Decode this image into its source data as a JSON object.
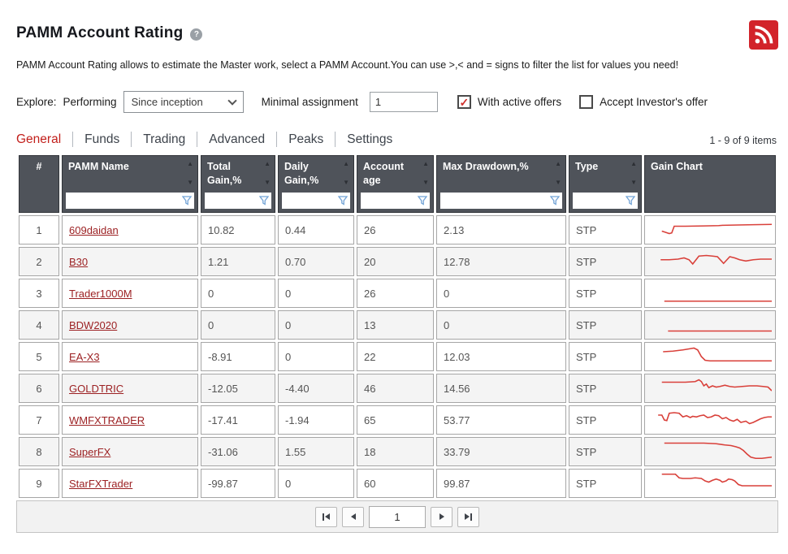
{
  "page": {
    "title": "PAMM Account Rating",
    "help_glyph": "?",
    "description": "PAMM Account Rating allows to estimate the Master work, select a PAMM Account.You can use >,< and = signs to filter the list for values you need!"
  },
  "filters": {
    "explore_label": "Explore:",
    "mode_label": "Performing",
    "period_value": "Since inception",
    "min_assignment_label": "Minimal assignment",
    "min_assignment_value": "1",
    "checkboxes": [
      {
        "label": "With active offers",
        "checked": true
      },
      {
        "label": "Accept Investor's offer",
        "checked": false
      }
    ]
  },
  "tabs": [
    {
      "label": "General",
      "active": true
    },
    {
      "label": "Funds",
      "active": false
    },
    {
      "label": "Trading",
      "active": false
    },
    {
      "label": "Advanced",
      "active": false
    },
    {
      "label": "Peaks",
      "active": false
    },
    {
      "label": "Settings",
      "active": false
    }
  ],
  "items_count": "1 - 9 of 9 items",
  "table": {
    "columns": [
      {
        "label": "#"
      },
      {
        "label": "PAMM Name"
      },
      {
        "label": "Total Gain,%"
      },
      {
        "label": "Daily Gain,%"
      },
      {
        "label": "Account age"
      },
      {
        "label": "Max Drawdown,%"
      },
      {
        "label": "Type"
      },
      {
        "label": "Gain Chart"
      }
    ],
    "rows": [
      {
        "num": "1",
        "name": "609daidan",
        "total": "10.82",
        "daily": "0.44",
        "age": "26",
        "drawdown": "2.13",
        "type": "STP"
      },
      {
        "num": "2",
        "name": "B30",
        "total": "1.21",
        "daily": "0.70",
        "age": "20",
        "drawdown": "12.78",
        "type": "STP"
      },
      {
        "num": "3",
        "name": "Trader1000M",
        "total": "0",
        "daily": "0",
        "age": "26",
        "drawdown": "0",
        "type": "STP"
      },
      {
        "num": "4",
        "name": "BDW2020",
        "total": "0",
        "daily": "0",
        "age": "13",
        "drawdown": "0",
        "type": "STP"
      },
      {
        "num": "5",
        "name": "EA-X3",
        "total": "-8.91",
        "daily": "0",
        "age": "22",
        "drawdown": "12.03",
        "type": "STP"
      },
      {
        "num": "6",
        "name": "GOLDTRIC",
        "total": "-12.05",
        "daily": "-4.40",
        "age": "46",
        "drawdown": "14.56",
        "type": "STP"
      },
      {
        "num": "7",
        "name": "WMFXTRADER",
        "total": "-17.41",
        "daily": "-1.94",
        "age": "65",
        "drawdown": "53.77",
        "type": "STP"
      },
      {
        "num": "8",
        "name": "SuperFX",
        "total": "-31.06",
        "daily": "1.55",
        "age": "18",
        "drawdown": "33.79",
        "type": "STP"
      },
      {
        "num": "9",
        "name": "StarFXTrader",
        "total": "-99.87",
        "daily": "0",
        "age": "60",
        "drawdown": "99.87",
        "type": "STP"
      }
    ]
  },
  "chart_data": [
    {
      "type": "line",
      "name": "609daidan gain sparkline",
      "points": [
        [
          11,
          22
        ],
        [
          14,
          24
        ],
        [
          17,
          26
        ],
        [
          19,
          25
        ],
        [
          21,
          14
        ],
        [
          30,
          14
        ],
        [
          45,
          13.5
        ],
        [
          57,
          13
        ],
        [
          60,
          12.5
        ],
        [
          72,
          12
        ],
        [
          85,
          11.5
        ],
        [
          100,
          11
        ]
      ]
    },
    {
      "type": "line",
      "name": "B30 gain sparkline",
      "points": [
        [
          10,
          17
        ],
        [
          17,
          17
        ],
        [
          24,
          16
        ],
        [
          29,
          14
        ],
        [
          33,
          17
        ],
        [
          36,
          24
        ],
        [
          41,
          11
        ],
        [
          47,
          10
        ],
        [
          52,
          11
        ],
        [
          56,
          12
        ],
        [
          61,
          23
        ],
        [
          66,
          12
        ],
        [
          70,
          14
        ],
        [
          74,
          17
        ],
        [
          79,
          19
        ],
        [
          85,
          17
        ],
        [
          91,
          16
        ],
        [
          100,
          16
        ]
      ]
    },
    {
      "type": "line",
      "name": "Trader1000M gain sparkline",
      "points": [
        [
          13,
          33
        ],
        [
          100,
          33
        ]
      ]
    },
    {
      "type": "line",
      "name": "BDW2020 gain sparkline",
      "points": [
        [
          16,
          30
        ],
        [
          100,
          30
        ]
      ]
    },
    {
      "type": "line",
      "name": "EA-X3 gain sparkline",
      "points": [
        [
          12,
          12
        ],
        [
          20,
          11
        ],
        [
          28,
          9
        ],
        [
          34,
          7
        ],
        [
          37,
          6
        ],
        [
          40,
          9
        ],
        [
          43,
          20
        ],
        [
          46,
          26
        ],
        [
          50,
          27
        ],
        [
          100,
          27
        ]
      ]
    },
    {
      "type": "line",
      "name": "GOLDTRIC gain sparkline",
      "points": [
        [
          11,
          10
        ],
        [
          20,
          10
        ],
        [
          30,
          10
        ],
        [
          38,
          9
        ],
        [
          41,
          6
        ],
        [
          43,
          9
        ],
        [
          45,
          16
        ],
        [
          47,
          13
        ],
        [
          49,
          19
        ],
        [
          52,
          16
        ],
        [
          55,
          18
        ],
        [
          58,
          17
        ],
        [
          62,
          15
        ],
        [
          66,
          17
        ],
        [
          70,
          18
        ],
        [
          76,
          17
        ],
        [
          82,
          16
        ],
        [
          88,
          16
        ],
        [
          93,
          17
        ],
        [
          97,
          18
        ],
        [
          100,
          24
        ]
      ]
    },
    {
      "type": "line",
      "name": "WMFXTRADER gain sparkline",
      "points": [
        [
          8,
          12
        ],
        [
          11,
          12
        ],
        [
          13,
          20
        ],
        [
          15,
          21
        ],
        [
          17,
          9
        ],
        [
          21,
          8
        ],
        [
          25,
          9
        ],
        [
          28,
          15
        ],
        [
          31,
          13
        ],
        [
          34,
          16
        ],
        [
          36,
          14
        ],
        [
          39,
          15
        ],
        [
          42,
          13
        ],
        [
          45,
          12
        ],
        [
          48,
          16
        ],
        [
          51,
          15
        ],
        [
          54,
          12
        ],
        [
          57,
          13
        ],
        [
          60,
          18
        ],
        [
          63,
          16
        ],
        [
          66,
          20
        ],
        [
          69,
          22
        ],
        [
          72,
          19
        ],
        [
          75,
          24
        ],
        [
          79,
          22
        ],
        [
          82,
          26
        ],
        [
          85,
          24
        ],
        [
          88,
          21
        ],
        [
          91,
          18
        ],
        [
          94,
          16
        ],
        [
          97,
          15
        ],
        [
          100,
          15
        ]
      ]
    },
    {
      "type": "line",
      "name": "SuperFX gain sparkline",
      "points": [
        [
          13,
          6
        ],
        [
          30,
          6
        ],
        [
          45,
          6
        ],
        [
          55,
          7
        ],
        [
          62,
          9
        ],
        [
          67,
          10
        ],
        [
          71,
          12
        ],
        [
          74,
          14
        ],
        [
          77,
          18
        ],
        [
          80,
          24
        ],
        [
          83,
          29
        ],
        [
          87,
          31
        ],
        [
          92,
          31
        ],
        [
          100,
          29
        ]
      ]
    },
    {
      "type": "line",
      "name": "StarFXTrader gain sparkline",
      "points": [
        [
          11,
          5
        ],
        [
          22,
          5
        ],
        [
          25,
          11
        ],
        [
          28,
          12
        ],
        [
          34,
          12
        ],
        [
          38,
          11
        ],
        [
          43,
          12
        ],
        [
          46,
          16
        ],
        [
          49,
          18
        ],
        [
          52,
          15
        ],
        [
          55,
          13
        ],
        [
          58,
          15
        ],
        [
          60,
          18
        ],
        [
          63,
          16
        ],
        [
          65,
          13
        ],
        [
          68,
          14
        ],
        [
          70,
          16
        ],
        [
          73,
          22
        ],
        [
          76,
          24
        ],
        [
          100,
          24
        ]
      ]
    }
  ],
  "pager": {
    "page_value": "1"
  },
  "colors": {
    "accent_red": "#c21f1b",
    "spark": "#d9403a",
    "header_bg": "#4f535a",
    "link": "#9c2123",
    "rss_bg": "#d2232a",
    "filter_icon": "#72a3d6"
  }
}
